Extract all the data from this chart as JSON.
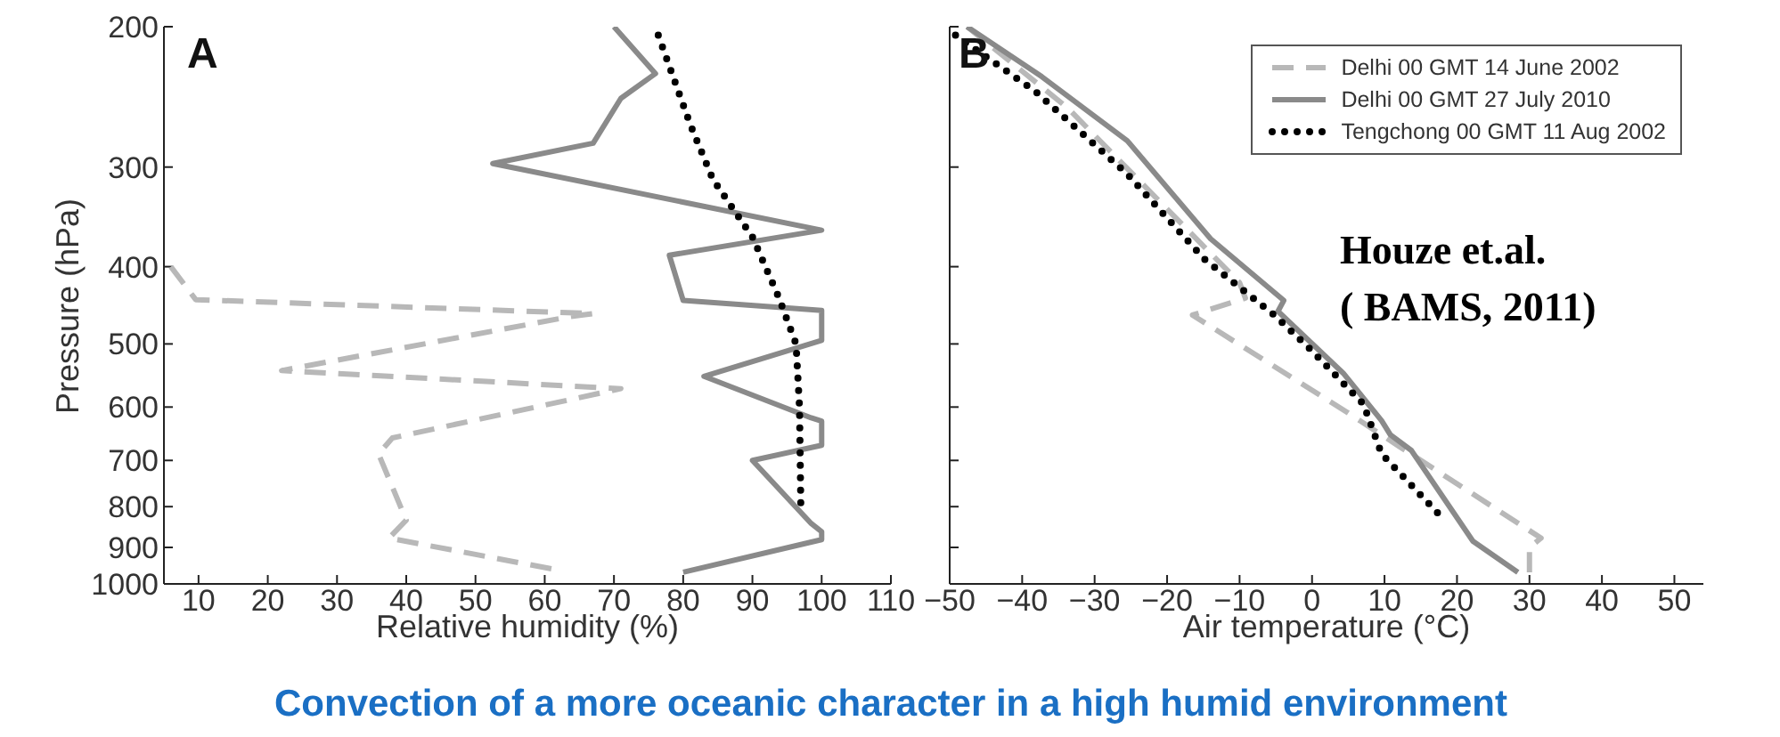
{
  "chart_data": [
    {
      "type": "line",
      "xlabel": "Relative humidity (%)",
      "ylabel": "Pressure (hPa)",
      "xlim": [
        5,
        110
      ],
      "xticks": [
        10,
        20,
        30,
        40,
        50,
        60,
        70,
        80,
        90,
        100,
        110
      ],
      "ylim": [
        1000,
        200
      ],
      "yticks": [
        200,
        300,
        400,
        500,
        600,
        700,
        800,
        900,
        1000
      ],
      "log": "y",
      "grid": false,
      "legend": false,
      "marker": "none",
      "annotations": [
        "A"
      ],
      "series": [
        {
          "color": "#b8b8b8",
          "line_style": "dashed",
          "x": [
            6,
            9.6,
            67,
            63.7,
            22,
            71,
            38,
            36,
            40,
            37.5,
            62
          ],
          "values": [
            400,
            440,
            458,
            462,
            540,
            569,
            656,
            687,
            832,
            876,
            961
          ]
        },
        {
          "color": "#8a8a8a",
          "line_style": "solid",
          "x": [
            70,
            76,
            71,
            67,
            52.5,
            100,
            78,
            80,
            100,
            100,
            83,
            98.5,
            100,
            100,
            90,
            98.5,
            100,
            100,
            80
          ],
          "values": [
            200,
            229,
            246,
            280,
            297,
            360,
            387,
            441,
            454,
            495,
            549,
            619,
            625,
            670,
            700,
            840,
            860,
            880,
            967
          ]
        },
        {
          "color": "#000000",
          "line_style": "dotted",
          "x": [
            76.4,
            81,
            84.3,
            90,
            93.8,
            96.3,
            96.8,
            97
          ],
          "values": [
            205,
            265,
            311,
            367,
            437,
            500,
            600,
            811
          ]
        }
      ]
    },
    {
      "type": "line",
      "xlabel": "Air temperature (°C)",
      "xlim": [
        -50,
        54
      ],
      "xticks": [
        -50,
        -40,
        -30,
        -20,
        -10,
        0,
        10,
        20,
        30,
        40,
        50
      ],
      "ylim": [
        1000,
        200
      ],
      "yticks": [
        200,
        300,
        400,
        500,
        600,
        700,
        800,
        900,
        1000
      ],
      "log": "y",
      "tick_labels": "x",
      "grid": false,
      "legend": "top right",
      "marker": "none",
      "annotations": [
        "B",
        "Houze et.al.",
        "( BAMS, 2011)",
        "Convection of a more oceanic character in a high humid environment"
      ],
      "series": [
        {
          "name": "Delhi 00 GMT 14 June 2002",
          "color": "#b8b8b8",
          "line_style": "dashed",
          "x": [
            -47.6,
            -33.7,
            -10,
            -9.2,
            -16.5,
            4.7,
            12,
            31.6,
            30,
            30
          ],
          "values": [
            200,
            253,
            419,
            438,
            460,
            608,
            672,
            876,
            900,
            967
          ]
        },
        {
          "name": "Delhi 00 GMT 27 July 2010",
          "color": "#8a8a8a",
          "line_style": "solid",
          "x": [
            -47.6,
            -37.3,
            -25.5,
            -14,
            -3.9,
            -4.7,
            4.3,
            9.6,
            10.8,
            13.7,
            22.2,
            28.4
          ],
          "values": [
            200,
            231,
            278,
            369,
            441,
            455,
            544,
            624,
            650,
            680,
            884,
            967
          ]
        },
        {
          "name": "Tengchong 00 GMT 11 Aug 2002",
          "color": "#000000",
          "line_style": "dotted",
          "x": [
            -49.2,
            -38.2,
            -25.5,
            -14.9,
            -5.1,
            -0.2,
            7.1,
            9.6,
            17.8
          ],
          "values": [
            205,
            241,
            306,
            391,
            461,
            508,
            595,
            687,
            823
          ]
        }
      ]
    }
  ]
}
